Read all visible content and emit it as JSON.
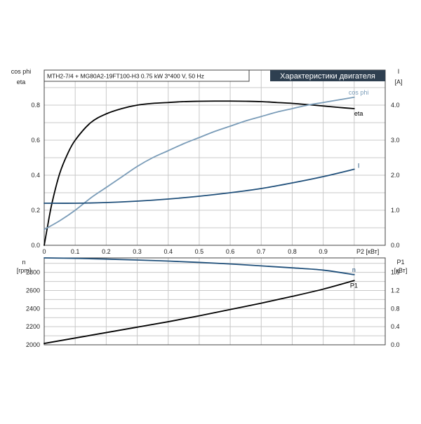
{
  "header": {
    "product_label": "MTH2-7/4 + MG80A2-19FT100-H3   0.75 kW   3*400 V, 50 Hz",
    "title": "Характеристики двигателя"
  },
  "colors": {
    "eta": "#000000",
    "cos_phi": "#7a9cb8",
    "current": "#1f4f7a",
    "speed": "#1f4f7a",
    "p1": "#000000",
    "title_bg": "#2e3f50",
    "title_fg": "#ffffff"
  },
  "chart_data": [
    {
      "type": "line",
      "panel": "upper",
      "xlabel": "P2 [кВт]",
      "x_ticks": [
        "0",
        "0.1",
        "0.2",
        "0.3",
        "0.4",
        "0.5",
        "0.6",
        "0.7",
        "0.8",
        "0.9"
      ],
      "xlim": [
        0,
        1.1
      ],
      "left_axis": {
        "label_line1": "cos phi",
        "label_line2": "eta",
        "ticks": [
          "0.0",
          "0.2",
          "0.4",
          "0.6",
          "0.8"
        ],
        "lim": [
          0,
          1.0
        ]
      },
      "right_axis": {
        "label_line1": "I",
        "label_line2": "[A]",
        "ticks": [
          "0.0",
          "1.0",
          "2.0",
          "3.0",
          "4.0"
        ],
        "lim": [
          0,
          5.0
        ]
      },
      "grid": true,
      "series": [
        {
          "name": "eta",
          "axis": "left",
          "x": [
            0,
            0.01,
            0.025,
            0.05,
            0.075,
            0.1,
            0.15,
            0.2,
            0.25,
            0.3,
            0.35,
            0.4,
            0.45,
            0.5,
            0.55,
            0.6,
            0.65,
            0.7,
            0.75,
            0.8,
            0.85,
            0.9,
            0.95,
            1.0
          ],
          "y": [
            0,
            0.1,
            0.24,
            0.41,
            0.52,
            0.6,
            0.7,
            0.75,
            0.78,
            0.8,
            0.81,
            0.815,
            0.82,
            0.822,
            0.823,
            0.823,
            0.822,
            0.82,
            0.815,
            0.81,
            0.803,
            0.795,
            0.787,
            0.78
          ]
        },
        {
          "name": "cos phi",
          "axis": "left",
          "x": [
            0,
            0.05,
            0.1,
            0.15,
            0.2,
            0.25,
            0.3,
            0.35,
            0.4,
            0.45,
            0.5,
            0.55,
            0.6,
            0.65,
            0.7,
            0.75,
            0.8,
            0.85,
            0.9,
            0.95,
            1.0
          ],
          "y": [
            0.09,
            0.14,
            0.2,
            0.27,
            0.33,
            0.39,
            0.45,
            0.5,
            0.54,
            0.58,
            0.615,
            0.65,
            0.68,
            0.71,
            0.735,
            0.76,
            0.78,
            0.8,
            0.815,
            0.83,
            0.845
          ]
        },
        {
          "name": "I",
          "axis": "right",
          "x": [
            0,
            0.1,
            0.2,
            0.3,
            0.4,
            0.5,
            0.6,
            0.7,
            0.8,
            0.9,
            1.0
          ],
          "y": [
            1.2,
            1.2,
            1.22,
            1.26,
            1.32,
            1.4,
            1.5,
            1.62,
            1.78,
            1.96,
            2.17
          ]
        }
      ]
    },
    {
      "type": "line",
      "panel": "lower",
      "xlim": [
        0,
        1.1
      ],
      "left_axis": {
        "label_line1": "n",
        "label_line2": "[rpm]",
        "ticks": [
          "2000",
          "2200",
          "2400",
          "2600",
          "2800"
        ],
        "lim": [
          2000,
          2960
        ]
      },
      "right_axis": {
        "label_line1": "P1",
        "label_line2": "[кВт]",
        "ticks": [
          "0.0",
          "0.4",
          "0.8",
          "1.2",
          "1.6"
        ],
        "lim": [
          0,
          1.92
        ]
      },
      "grid": true,
      "series": [
        {
          "name": "n",
          "axis": "left",
          "x": [
            0,
            0.1,
            0.2,
            0.3,
            0.4,
            0.5,
            0.6,
            0.7,
            0.8,
            0.9,
            1.0
          ],
          "y": [
            2960,
            2955,
            2947,
            2937,
            2925,
            2910,
            2893,
            2872,
            2850,
            2825,
            2775
          ]
        },
        {
          "name": "P1",
          "axis": "right",
          "x": [
            0,
            0.1,
            0.2,
            0.3,
            0.4,
            0.5,
            0.6,
            0.7,
            0.8,
            0.9,
            1.0
          ],
          "y": [
            0.03,
            0.15,
            0.27,
            0.39,
            0.51,
            0.64,
            0.78,
            0.92,
            1.07,
            1.23,
            1.42
          ]
        }
      ]
    }
  ]
}
